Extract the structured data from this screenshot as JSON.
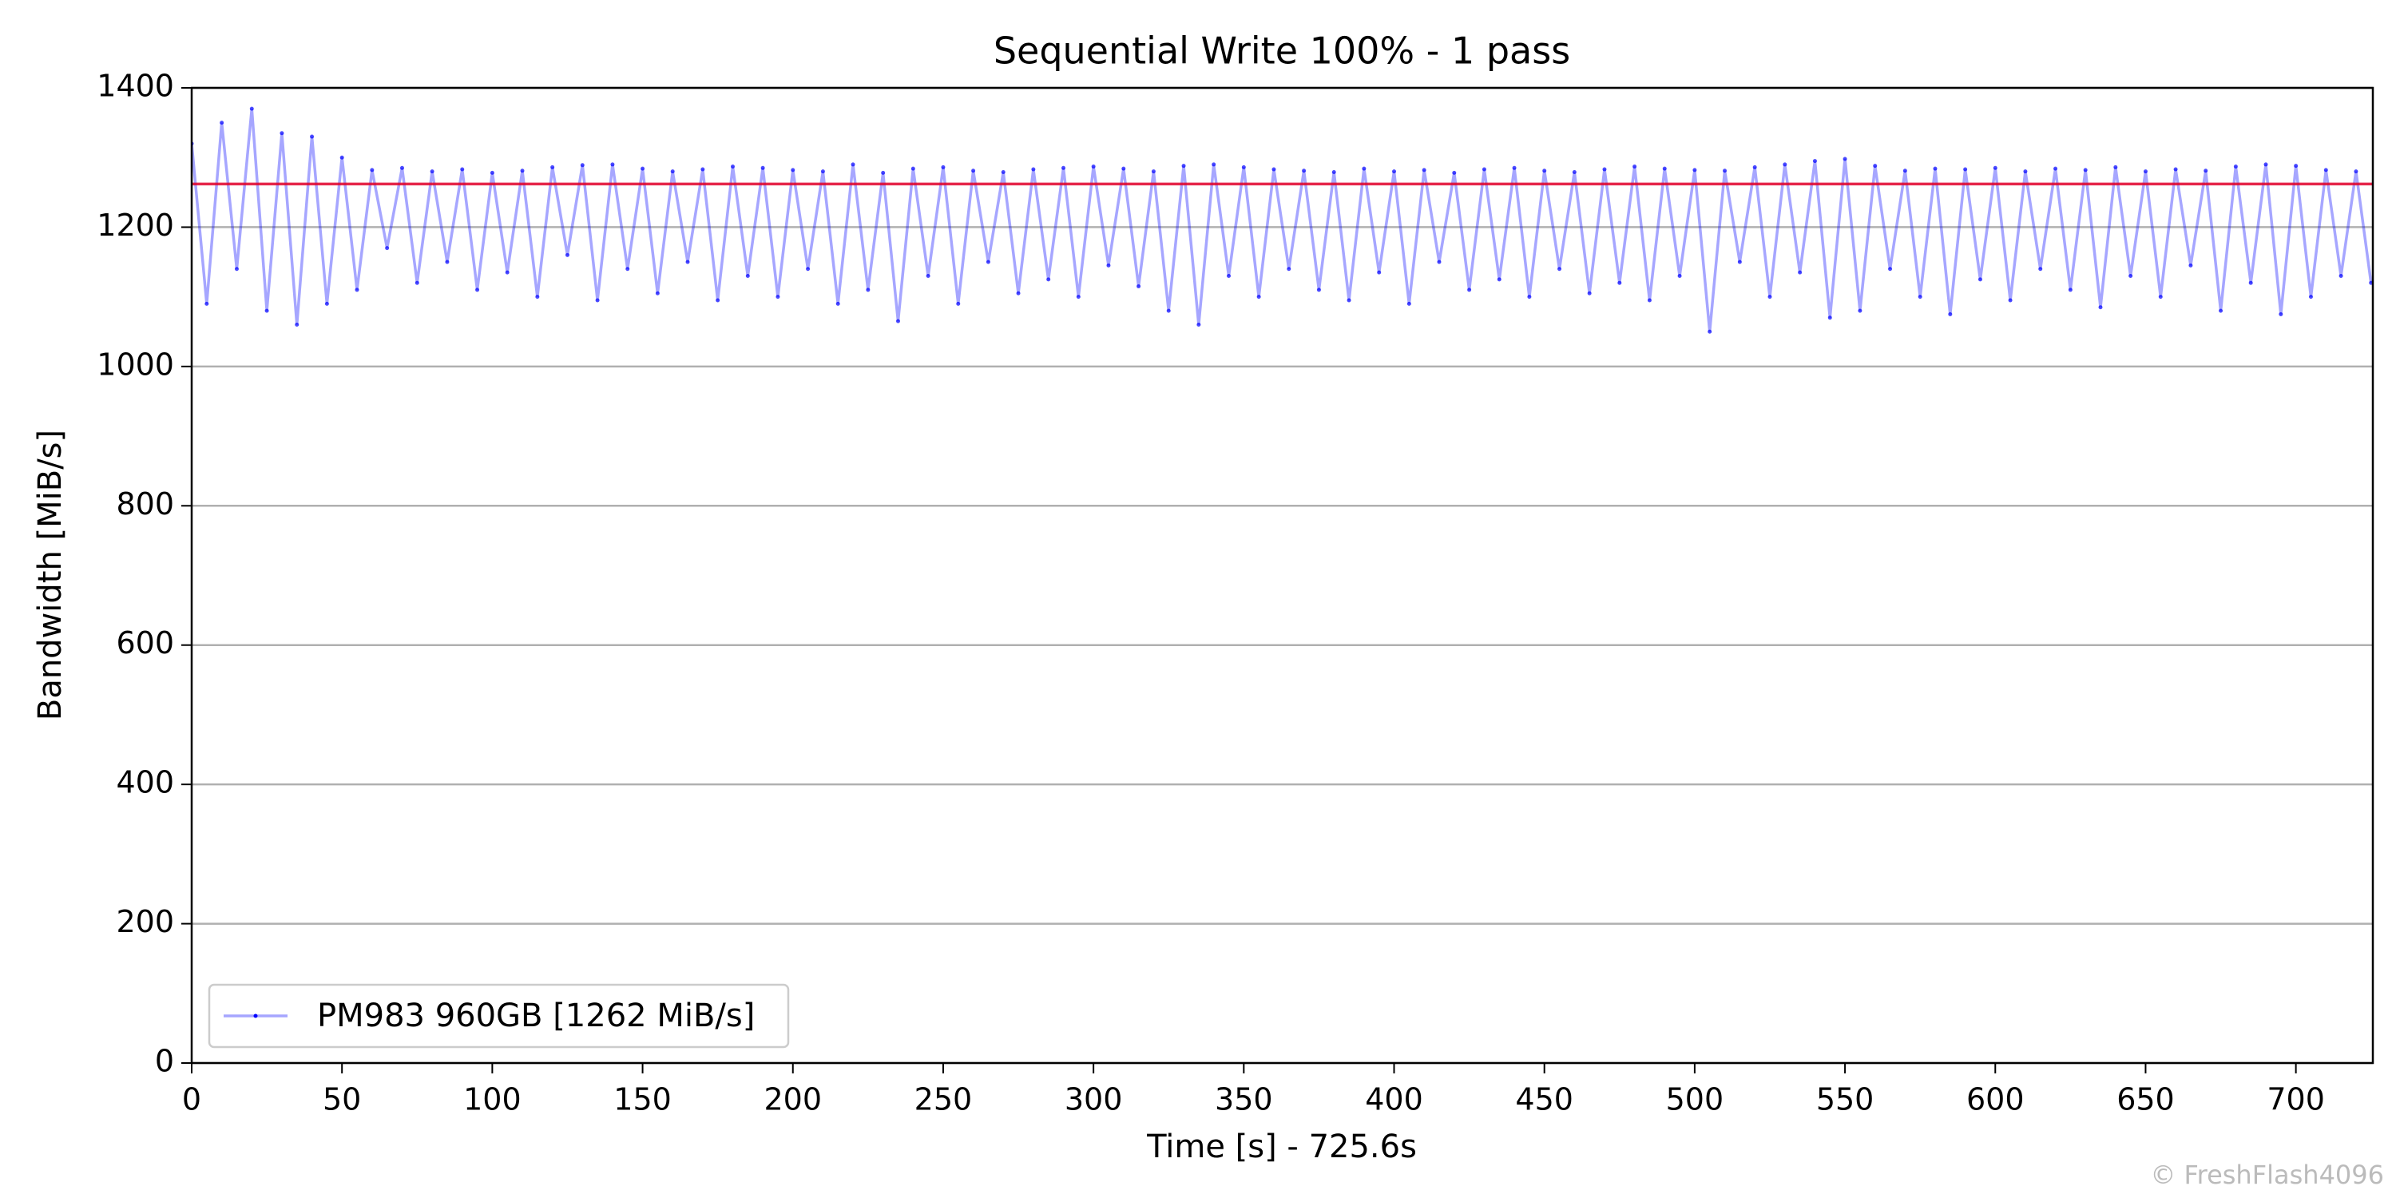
{
  "chart_data": {
    "type": "line",
    "title": "Sequential Write 100% - 1 pass",
    "xlabel": "Time [s] - 725.6s",
    "ylabel": "Bandwidth [MiB/s]",
    "watermark": "© FreshFlash4096",
    "xlim": [
      0,
      725.6
    ],
    "ylim": [
      0,
      1400
    ],
    "xticks": [
      0,
      50,
      100,
      150,
      200,
      250,
      300,
      350,
      400,
      450,
      500,
      550,
      600,
      650,
      700
    ],
    "yticks": [
      0,
      200,
      400,
      600,
      800,
      1000,
      1200,
      1400
    ],
    "grid": true,
    "legend": "lower left",
    "mean": 1262,
    "mean_color": "#e0002a",
    "x": [
      0,
      5,
      10,
      15,
      20,
      25,
      30,
      35,
      40,
      45,
      50,
      55,
      60,
      65,
      70,
      75,
      80,
      85,
      90,
      95,
      100,
      105,
      110,
      115,
      120,
      125,
      130,
      135,
      140,
      145,
      150,
      155,
      160,
      165,
      170,
      175,
      180,
      185,
      190,
      195,
      200,
      205,
      210,
      215,
      220,
      225,
      230,
      235,
      240,
      245,
      250,
      255,
      260,
      265,
      270,
      275,
      280,
      285,
      290,
      295,
      300,
      305,
      310,
      315,
      320,
      325,
      330,
      335,
      340,
      345,
      350,
      355,
      360,
      365,
      370,
      375,
      380,
      385,
      390,
      395,
      400,
      405,
      410,
      415,
      420,
      425,
      430,
      435,
      440,
      445,
      450,
      455,
      460,
      465,
      470,
      475,
      480,
      485,
      490,
      495,
      500,
      505,
      510,
      515,
      520,
      525,
      530,
      535,
      540,
      545,
      550,
      555,
      560,
      565,
      570,
      575,
      580,
      585,
      590,
      595,
      600,
      605,
      610,
      615,
      620,
      625,
      630,
      635,
      640,
      645,
      650,
      655,
      660,
      665,
      670,
      675,
      680,
      685,
      690,
      695,
      700,
      705,
      710,
      715,
      720,
      725
    ],
    "series": [
      {
        "name": "PM983 960GB [1262 MiB/s]",
        "color": "#0000ff",
        "values": [
          1320,
          1090,
          1350,
          1140,
          1370,
          1080,
          1335,
          1060,
          1330,
          1090,
          1300,
          1110,
          1282,
          1170,
          1285,
          1120,
          1280,
          1150,
          1283,
          1110,
          1278,
          1135,
          1281,
          1100,
          1286,
          1160,
          1289,
          1095,
          1290,
          1140,
          1284,
          1105,
          1280,
          1150,
          1283,
          1095,
          1287,
          1130,
          1285,
          1100,
          1282,
          1140,
          1280,
          1090,
          1290,
          1110,
          1278,
          1065,
          1284,
          1130,
          1286,
          1090,
          1281,
          1150,
          1279,
          1105,
          1283,
          1125,
          1285,
          1100,
          1287,
          1145,
          1284,
          1115,
          1280,
          1080,
          1288,
          1060,
          1290,
          1130,
          1286,
          1100,
          1283,
          1140,
          1281,
          1110,
          1279,
          1095,
          1284,
          1135,
          1280,
          1090,
          1282,
          1150,
          1278,
          1110,
          1283,
          1125,
          1285,
          1100,
          1281,
          1140,
          1279,
          1105,
          1283,
          1120,
          1287,
          1095,
          1284,
          1130,
          1282,
          1050,
          1281,
          1150,
          1286,
          1100,
          1290,
          1135,
          1295,
          1070,
          1298,
          1080,
          1288,
          1140,
          1281,
          1100,
          1284,
          1075,
          1283,
          1125,
          1285,
          1095,
          1280,
          1140,
          1284,
          1110,
          1282,
          1085,
          1286,
          1130,
          1280,
          1100,
          1283,
          1145,
          1281,
          1080,
          1287,
          1120,
          1290,
          1075,
          1288,
          1100,
          1282,
          1130,
          1280,
          1120
        ]
      }
    ]
  }
}
